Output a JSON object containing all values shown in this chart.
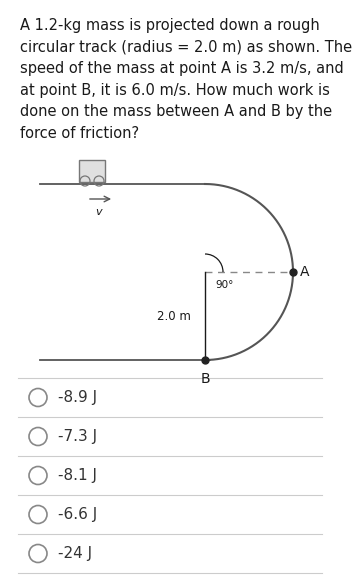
{
  "question_text": "A 1.2-kg mass is projected down a rough\ncircular track (radius = 2.0 m) as shown. The\nspeed of the mass at point A is 3.2 m/s, and\nat point B, it is 6.0 m/s. How much work is\ndone on the mass between A and B by the\nforce of friction?",
  "choices": [
    "-8.9 J",
    "-7.3 J",
    "-8.1 J",
    "-6.6 J",
    "-24 J"
  ],
  "background_color": "#ffffff",
  "text_color": "#1a1a1a",
  "choice_text_color": "#333333",
  "divider_color": "#cccccc",
  "font_size_question": 10.5,
  "font_size_choice": 11,
  "radio_color": "#888888",
  "diagram": {
    "track_color": "#555555",
    "dashed_color": "#888888",
    "box_edge_color": "#777777",
    "box_face_color": "#e0e0e0",
    "arrow_color": "#555555",
    "point_A_label": "A",
    "point_B_label": "B",
    "radius_label": "2.0 m",
    "angle_label": "90°",
    "v_label": "v"
  }
}
